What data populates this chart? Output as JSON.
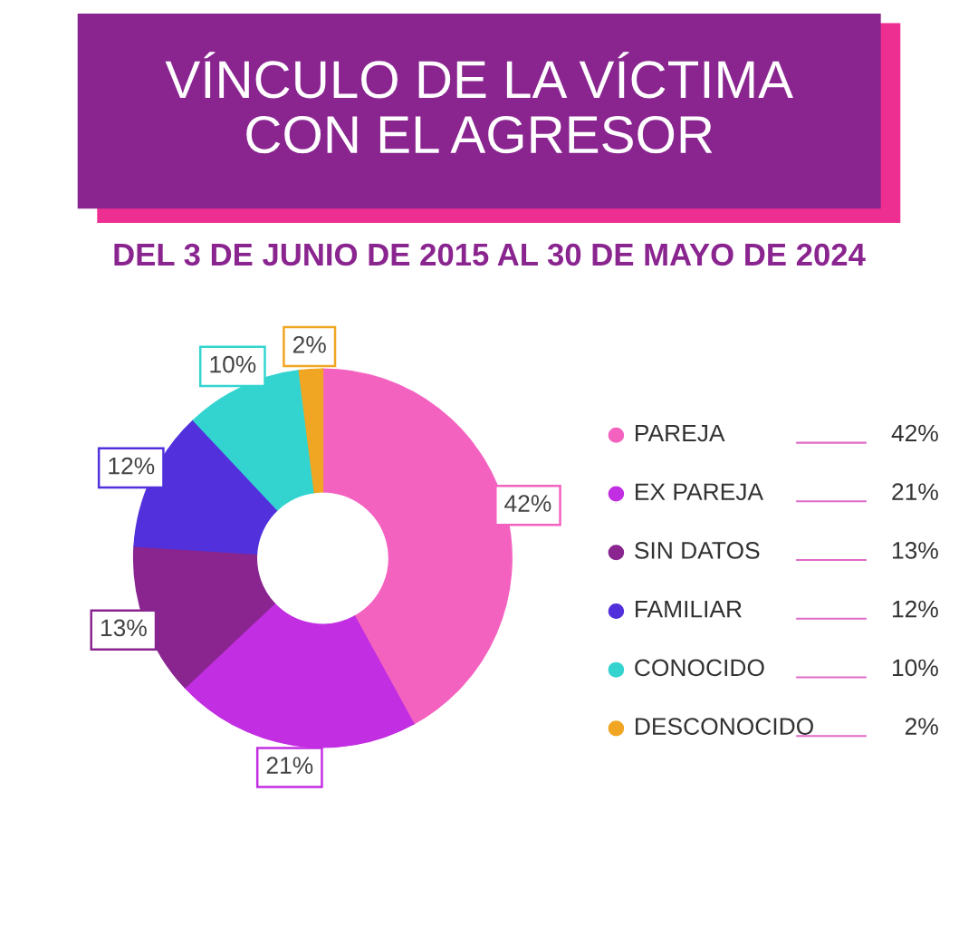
{
  "chart_data": {
    "type": "donut",
    "title": "VÍNCULO DE LA VÍCTIMA\nCON EL AGRESOR",
    "subtitle": "DEL 3 DE JUNIO DE 2015 AL 30 DE MAYO DE 2024",
    "categories": [
      "PAREJA",
      "EX PAREJA",
      "SIN DATOS",
      "FAMILIAR",
      "CONOCIDO",
      "DESCONOCIDO"
    ],
    "values": [
      42,
      21,
      13,
      12,
      10,
      2
    ],
    "colors": [
      "#f462c0",
      "#c22ee2",
      "#8a2590",
      "#5231dc",
      "#33d4d0",
      "#f0a623"
    ],
    "value_labels": [
      "42%",
      "21%",
      "13%",
      "12%",
      "10%",
      "2%"
    ],
    "legend": "right"
  }
}
